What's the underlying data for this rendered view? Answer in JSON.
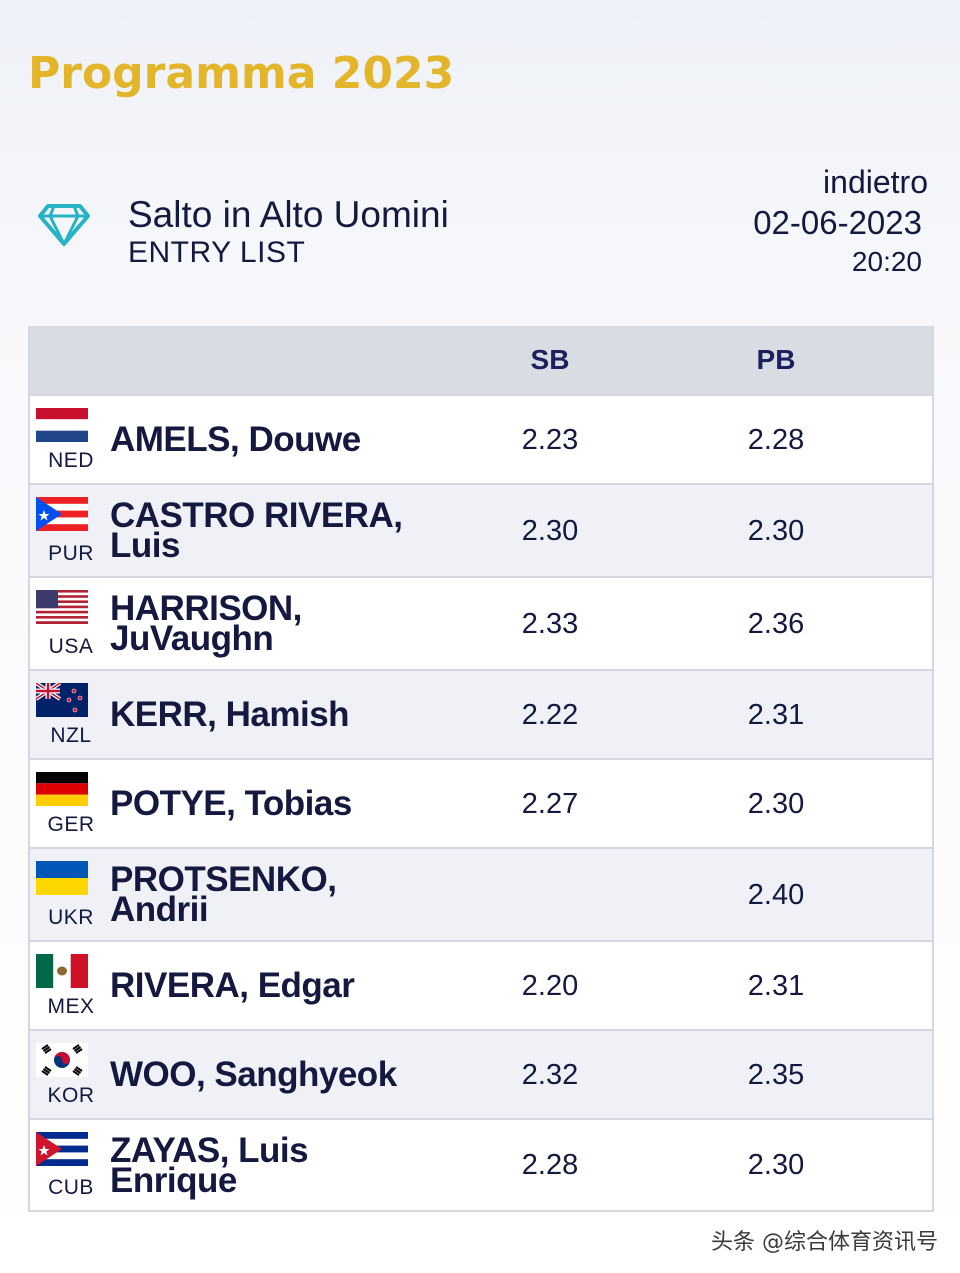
{
  "header": {
    "title": "Programma 2023"
  },
  "event": {
    "name": "Salto in Alto Uomini",
    "subtitle": "ENTRY LIST",
    "back_label": "indietro",
    "date": "02-06-2023",
    "time": "20:20",
    "icon": "diamond-icon"
  },
  "table": {
    "headers": {
      "sb": "SB",
      "pb": "PB"
    },
    "rows": [
      {
        "nat": "NED",
        "line1": "AMELS, Douwe",
        "line2": "",
        "sb": "2.23",
        "pb": "2.28",
        "flag": "ned"
      },
      {
        "nat": "PUR",
        "line1": "CASTRO RIVERA,",
        "line2": "Luis",
        "sb": "2.30",
        "pb": "2.30",
        "flag": "pur"
      },
      {
        "nat": "USA",
        "line1": "HARRISON,",
        "line2": "JuVaughn",
        "sb": "2.33",
        "pb": "2.36",
        "flag": "usa"
      },
      {
        "nat": "NZL",
        "line1": "KERR, Hamish",
        "line2": "",
        "sb": "2.22",
        "pb": "2.31",
        "flag": "nzl"
      },
      {
        "nat": "GER",
        "line1": "POTYE, Tobias",
        "line2": "",
        "sb": "2.27",
        "pb": "2.30",
        "flag": "ger"
      },
      {
        "nat": "UKR",
        "line1": "PROTSENKO,",
        "line2": "Andrii",
        "sb": "",
        "pb": "2.40",
        "flag": "ukr"
      },
      {
        "nat": "MEX",
        "line1": "RIVERA, Edgar",
        "line2": "",
        "sb": "2.20",
        "pb": "2.31",
        "flag": "mex"
      },
      {
        "nat": "KOR",
        "line1": "WOO, Sanghyeok",
        "line2": "",
        "sb": "2.32",
        "pb": "2.35",
        "flag": "kor"
      },
      {
        "nat": "CUB",
        "line1": "ZAYAS, Luis",
        "line2": "Enrique",
        "sb": "2.28",
        "pb": "2.30",
        "flag": "cub"
      }
    ]
  },
  "watermark": "头条 @综合体育资讯号",
  "colors": {
    "title_gold": "#e3b52a",
    "text_navy": "#15183f",
    "icon_teal": "#26b3c4"
  }
}
